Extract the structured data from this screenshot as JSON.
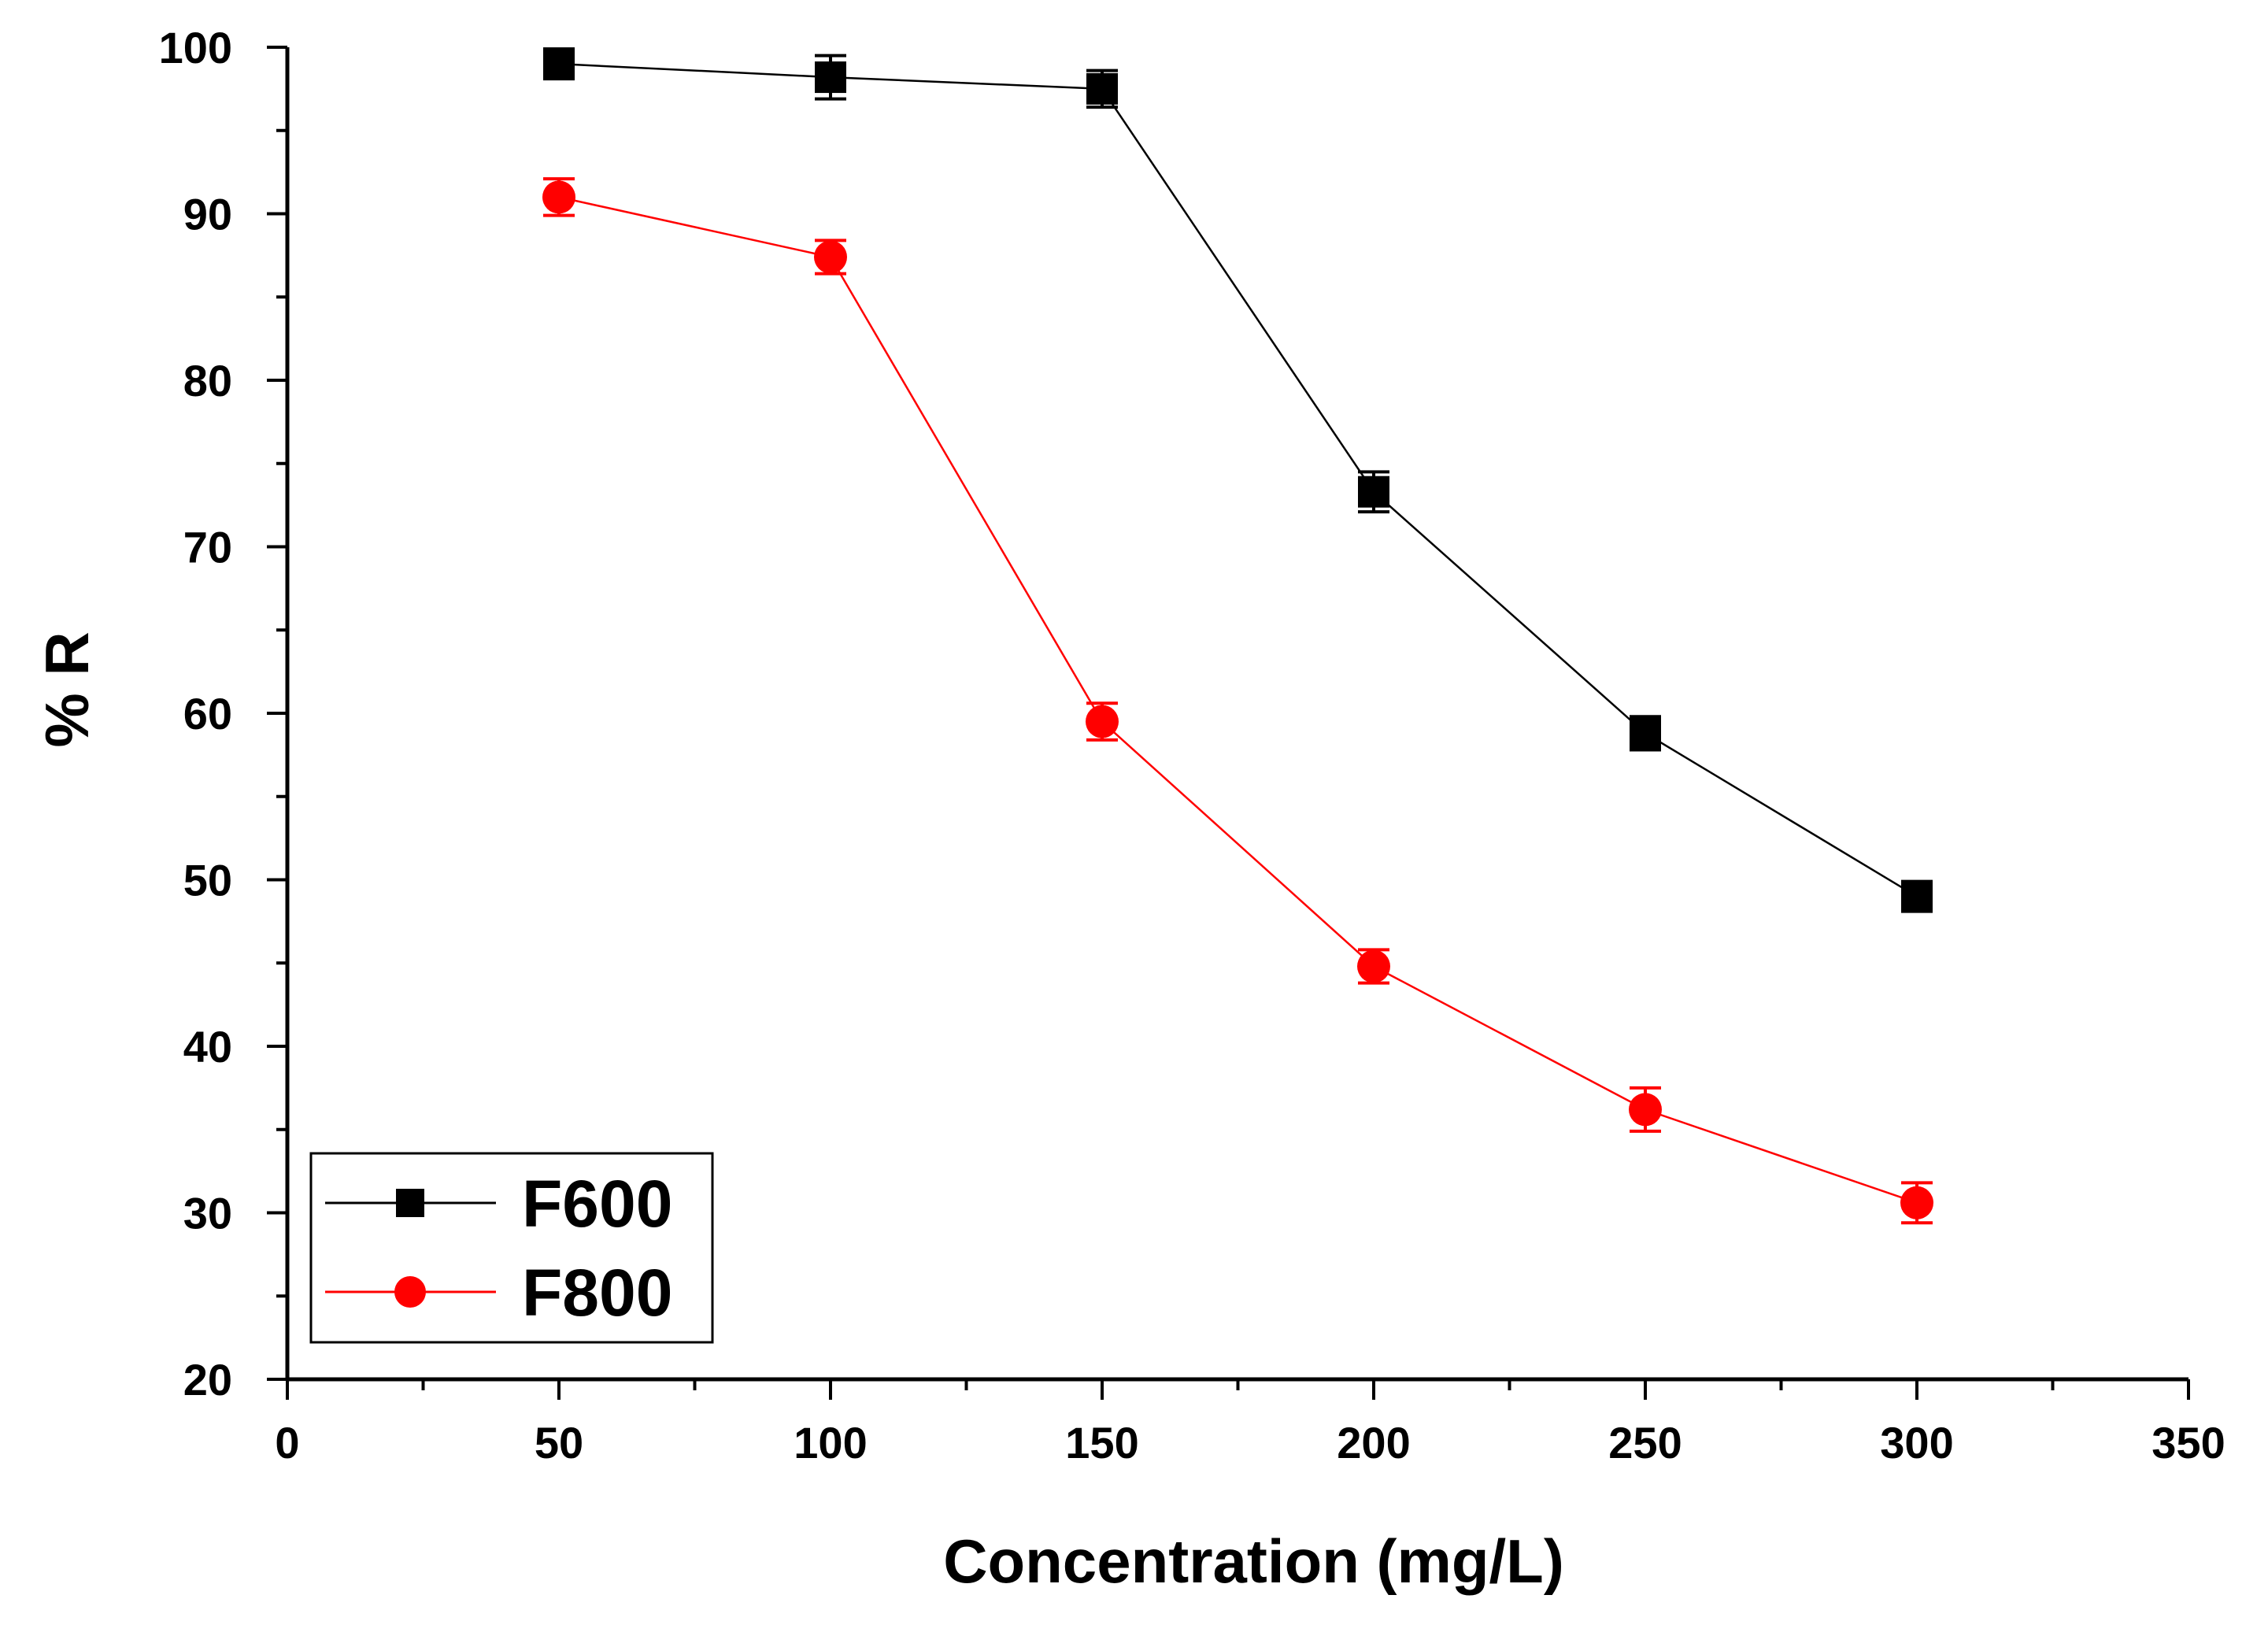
{
  "chart_data": {
    "type": "line",
    "title": "",
    "xlabel": "Concentration (mg/L)",
    "ylabel": "% R",
    "xlim": [
      0,
      350
    ],
    "ylim": [
      20,
      100
    ],
    "xticks": [
      0,
      50,
      100,
      150,
      200,
      250,
      300,
      350
    ],
    "yticks": [
      20,
      30,
      40,
      50,
      60,
      70,
      80,
      90,
      100
    ],
    "xtick_labels": [
      "0",
      "50",
      "100",
      "150",
      "200",
      "250",
      "300",
      "350"
    ],
    "ytick_labels": [
      "20",
      "30",
      "40",
      "50",
      "60",
      "70",
      "80",
      "90",
      "100"
    ],
    "x": [
      50,
      100,
      150,
      200,
      250,
      300
    ],
    "legend_position": "bottom-left",
    "grid": false,
    "series": [
      {
        "name": "F600",
        "values": [
          99.0,
          98.2,
          97.5,
          73.3,
          58.8,
          49.0
        ],
        "errors": [
          0.9,
          1.3,
          1.1,
          1.2,
          1.0,
          0.9
        ],
        "color": "#000000",
        "marker": "square"
      },
      {
        "name": "F800",
        "values": [
          91.0,
          87.4,
          59.5,
          44.8,
          36.2,
          30.6
        ],
        "errors": [
          1.1,
          1.0,
          1.1,
          1.0,
          1.3,
          1.2
        ],
        "color": "#ff0000",
        "marker": "circle"
      }
    ]
  }
}
